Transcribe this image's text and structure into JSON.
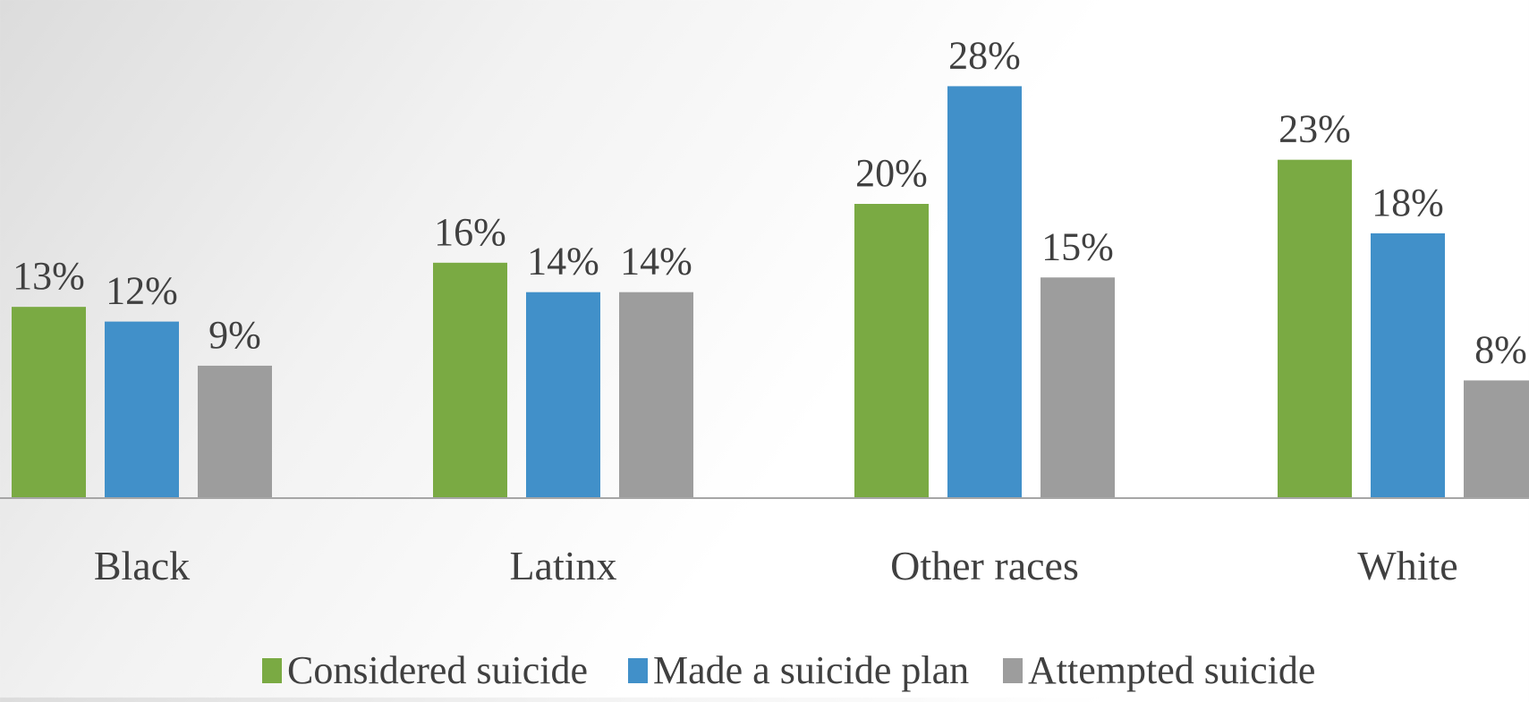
{
  "chart_data": {
    "type": "bar",
    "categories": [
      "Black",
      "Latinx",
      "Other races",
      "White"
    ],
    "series": [
      {
        "name": "Considered suicide",
        "values": [
          13,
          16,
          20,
          23
        ],
        "color": "#7aaa43"
      },
      {
        "name": "Made a suicide plan",
        "values": [
          12,
          14,
          28,
          18
        ],
        "color": "#4190c9"
      },
      {
        "name": "Attempted suicide",
        "values": [
          9,
          14,
          15,
          8
        ],
        "color": "#9d9d9d"
      }
    ],
    "value_suffix": "%",
    "ylim": [
      0,
      28
    ],
    "grid": false,
    "legend_position": "bottom",
    "axis_color": "#a6a6a6",
    "label_color": "#404040"
  }
}
